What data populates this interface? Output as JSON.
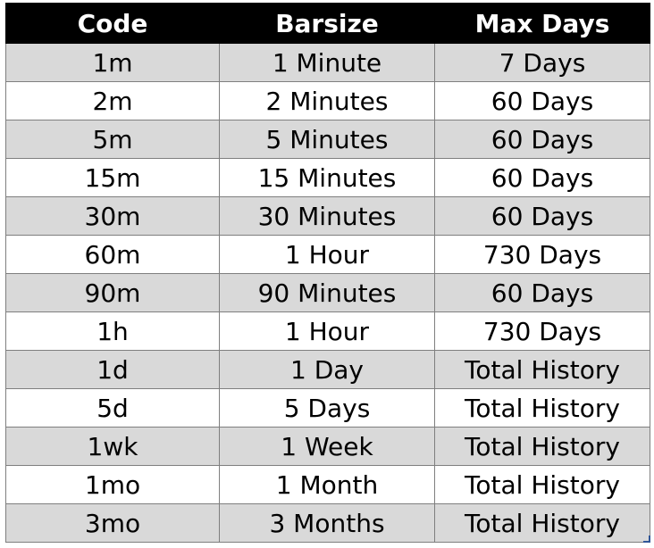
{
  "table": {
    "headers": [
      "Code",
      "Barsize",
      "Max Days"
    ],
    "rows": [
      [
        "1m",
        "1 Minute",
        "7 Days"
      ],
      [
        "2m",
        "2 Minutes",
        "60 Days"
      ],
      [
        "5m",
        "5 Minutes",
        "60 Days"
      ],
      [
        "15m",
        "15 Minutes",
        "60 Days"
      ],
      [
        "30m",
        "30 Minutes",
        "60 Days"
      ],
      [
        "60m",
        "1 Hour",
        "730 Days"
      ],
      [
        "90m",
        "90 Minutes",
        "60 Days"
      ],
      [
        "1h",
        "1 Hour",
        "730 Days"
      ],
      [
        "1d",
        "1 Day",
        "Total History"
      ],
      [
        "5d",
        "5 Days",
        "Total History"
      ],
      [
        "1wk",
        "1 Week",
        "Total History"
      ],
      [
        "1mo",
        "1 Month",
        "Total History"
      ],
      [
        "3mo",
        "3 Months",
        "Total History"
      ]
    ]
  },
  "colors": {
    "header_bg": "#000000",
    "header_text": "#ffffff",
    "shaded_row": "#d9d9d9",
    "plain_row": "#ffffff",
    "grid": "#7f7f7f"
  }
}
